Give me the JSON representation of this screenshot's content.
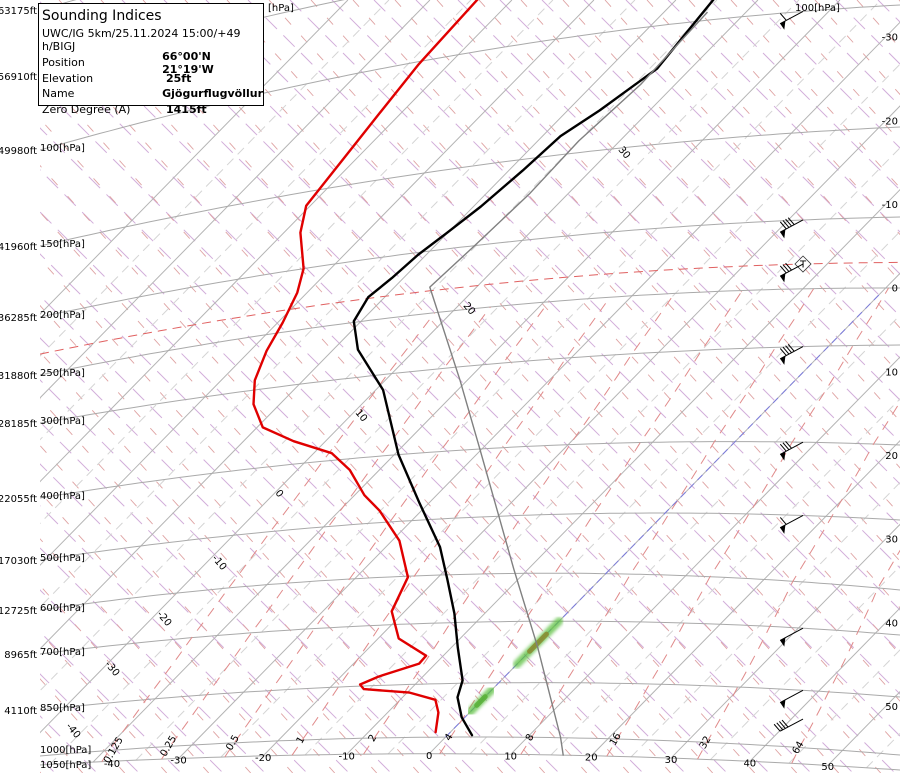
{
  "info_box": {
    "title": "Sounding Indices",
    "model_run": "UWC/IG 5km/25.11.2024 15:00/+49 h/BIGJ",
    "rows": [
      {
        "label": "Position",
        "value": "66°00'N 21°19'W"
      },
      {
        "label": "Elevation",
        "value": "25ft"
      },
      {
        "label": "Name",
        "value": "Gjögurflugvöllur"
      },
      {
        "label": "Zero Degree (A)",
        "value": "1415ft"
      }
    ]
  },
  "chart_data": {
    "type": "line",
    "diagram": "skew-T log-p",
    "x_unit": "°C",
    "y_unit": "hPa",
    "pressure_levels": [
      {
        "p": 50,
        "height": "63175ft",
        "label": ""
      },
      {
        "p": 70,
        "height": "56910ft",
        "label": ""
      },
      {
        "p": 100,
        "height": "49980ft",
        "label": "100[hPa]"
      },
      {
        "p": 150,
        "height": "41960ft",
        "label": "150[hPa]"
      },
      {
        "p": 200,
        "height": "36285ft",
        "label": "200[hPa]"
      },
      {
        "p": 250,
        "height": "31880ft",
        "label": "250[hPa]"
      },
      {
        "p": 300,
        "height": "28185ft",
        "label": "300[hPa]"
      },
      {
        "p": 400,
        "height": "22055ft",
        "label": "400[hPa]"
      },
      {
        "p": 500,
        "height": "17030ft",
        "label": "500[hPa]"
      },
      {
        "p": 600,
        "height": "12725ft",
        "label": "600[hPa]"
      },
      {
        "p": 700,
        "height": "8965ft",
        "label": "700[hPa]"
      },
      {
        "p": 850,
        "height": "4110ft",
        "label": "850[hPa]"
      },
      {
        "p": 1000,
        "height": "",
        "label": "1000[hPa]"
      },
      {
        "p": 1050,
        "height": "",
        "label": "1050[hPa]"
      }
    ],
    "top_partial_label": "[hPa]",
    "right_top_label": "100[hPa]",
    "isotherm_bottom_labels": [
      "-40",
      "-30",
      "-20",
      "-10",
      "0",
      "10",
      "20",
      "30",
      "40",
      "50"
    ],
    "isotherm_right_labels": [
      "-30",
      "-20",
      "-10",
      "0",
      "10",
      "20",
      "30",
      "40",
      "50"
    ],
    "mixing_ratio_labels": [
      "0.125",
      "0.25",
      "0.5",
      "1",
      "2",
      "4",
      "8",
      "16",
      "32",
      "64"
    ],
    "adiabat_labels": [
      "30",
      "20",
      "10",
      "0",
      "-10",
      "-20",
      "-30",
      "-40"
    ],
    "series": [
      {
        "color": "#000000",
        "points": [
          [
            90,
            -55.6
          ],
          [
            118,
            -54.1
          ],
          [
            133,
            -56.1
          ],
          [
            142,
            -57.8
          ],
          [
            157,
            -58.3
          ],
          [
            176,
            -59.1
          ],
          [
            190,
            -60.1
          ],
          [
            202,
            -61.0
          ],
          [
            218,
            -61.4
          ],
          [
            231,
            -62.0
          ],
          [
            249,
            -60.9
          ],
          [
            275,
            -57.0
          ],
          [
            319,
            -49.1
          ],
          [
            400,
            -39.5
          ],
          [
            475,
            -31.1
          ],
          [
            550,
            -23.4
          ],
          [
            610,
            -18.6
          ],
          [
            681,
            -13.7
          ],
          [
            762,
            -9.2
          ],
          [
            843,
            -4.7
          ],
          [
            889,
            -3.3
          ],
          [
            945,
            -0.4
          ],
          [
            995,
            3.0
          ]
        ]
      },
      {
        "color": "#e00000",
        "points": [
          [
            78,
            -84.3
          ],
          [
            101,
            -83.7
          ],
          [
            120,
            -82.6
          ],
          [
            144,
            -81.2
          ],
          [
            159,
            -80.5
          ],
          [
            176,
            -78.0
          ],
          [
            200,
            -73.3
          ],
          [
            219,
            -71.2
          ],
          [
            242,
            -69.4
          ],
          [
            265,
            -68.0
          ],
          [
            291,
            -65.9
          ],
          [
            318,
            -63.2
          ],
          [
            349,
            -59.3
          ],
          [
            371,
            -53.9
          ],
          [
            391,
            -47.8
          ],
          [
            417,
            -43.6
          ],
          [
            457,
            -38.8
          ],
          [
            482,
            -35.1
          ],
          [
            535,
            -29.1
          ],
          [
            602,
            -23.7
          ],
          [
            672,
            -21.6
          ],
          [
            735,
            -17.5
          ],
          [
            780,
            -12.1
          ],
          [
            799,
            -12.0
          ],
          [
            828,
            -15.4
          ],
          [
            846,
            -16.7
          ],
          [
            859,
            -15.7
          ],
          [
            873,
            -9.7
          ],
          [
            895,
            -5.7
          ],
          [
            931,
            -3.8
          ],
          [
            986,
            -1.8
          ]
        ]
      },
      {
        "color": "#808080",
        "points": [
          [
            97,
            -54.7
          ],
          [
            124,
            -54.2
          ],
          [
            145,
            -55.0
          ],
          [
            172,
            -54.7
          ],
          [
            201,
            -55.2
          ],
          [
            229,
            -55.7
          ],
          [
            316,
            -40.9
          ],
          [
            398,
            -30.5
          ],
          [
            593,
            -11.7
          ],
          [
            762,
            0.4
          ],
          [
            998,
            14.0
          ],
          [
            1050,
            16.5
          ]
        ]
      }
    ],
    "zero_isotherm_color": "#7b7bdc",
    "highlight_bands": [
      {
        "T": 0,
        "p_top": 870,
        "p_bottom": 930,
        "color": "#5cc040"
      },
      {
        "T": 0,
        "p_top": 700,
        "p_bottom": 805,
        "color": "#5cc040",
        "core_color": "#8a8a30"
      }
    ],
    "tropopause": {
      "p": 232,
      "marker": "T",
      "color": "#e06060"
    },
    "wind_barbs": [
      {
        "p": 100,
        "speed_kt": 60,
        "direction_deg": 240
      },
      {
        "p": 200,
        "speed_kt": 90,
        "direction_deg": 240
      },
      {
        "p": 232,
        "speed_kt": 80,
        "direction_deg": 240
      },
      {
        "p": 300,
        "speed_kt": 90,
        "direction_deg": 240
      },
      {
        "p": 400,
        "speed_kt": 80,
        "direction_deg": 240
      },
      {
        "p": 500,
        "speed_kt": 60,
        "direction_deg": 240
      },
      {
        "p": 700,
        "speed_kt": 50,
        "direction_deg": 240
      },
      {
        "p": 850,
        "speed_kt": 50,
        "direction_deg": 240
      },
      {
        "p": 925,
        "speed_kt": 40,
        "direction_deg": 240
      }
    ]
  }
}
